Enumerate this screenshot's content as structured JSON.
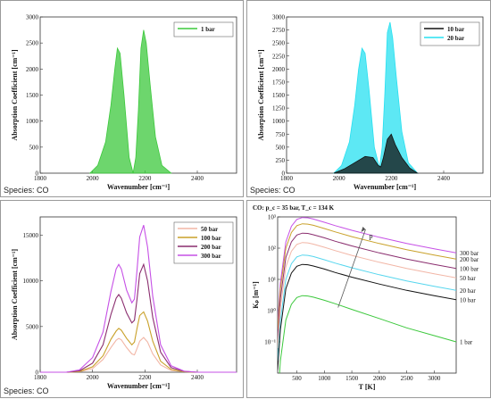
{
  "colors": {
    "green": "#3cc83c",
    "black": "#111111",
    "cyan": "#27e0f0",
    "c50": "#f2b6a6",
    "c100": "#c9a12a",
    "c200": "#8a2d6e",
    "c300": "#c650e6",
    "c1": "#3cc83c",
    "c10": "#111111",
    "c20": "#56d6ee"
  },
  "panels": [
    {
      "species_label": "Species: CO"
    },
    {
      "species_label": "Species: CO"
    },
    {
      "species_label": "Species: CO"
    },
    {
      "title": "CO: p_c = 35 bar, T_c = 134 K"
    }
  ],
  "chart_data": [
    {
      "type": "area",
      "xlabel": "Wavenumber [cm⁻¹]",
      "ylabel": "Absorption Coefficient [cm⁻¹]",
      "xlim": [
        1800,
        2550
      ],
      "ylim": [
        0,
        3000
      ],
      "xticks": [
        1800,
        2000,
        2200,
        2400
      ],
      "yticks": [
        0,
        500,
        1000,
        1500,
        2000,
        2500,
        3000
      ],
      "legend_position": "top-right",
      "series": [
        {
          "name": "1   bar",
          "color_key": "green",
          "x": [
            1990,
            2020,
            2050,
            2070,
            2085,
            2095,
            2105,
            2120,
            2140,
            2155,
            2165,
            2175,
            2185,
            2195,
            2205,
            2220,
            2240,
            2265,
            2300
          ],
          "y": [
            0,
            150,
            600,
            1300,
            2000,
            2400,
            2300,
            1500,
            300,
            0,
            300,
            1200,
            2400,
            2750,
            2500,
            1700,
            700,
            150,
            0
          ]
        }
      ]
    },
    {
      "type": "area",
      "xlabel": "Wavenumber [cm⁻¹]",
      "ylabel": "Absorption Coefficient [cm⁻¹]",
      "xlim": [
        1800,
        2550
      ],
      "ylim": [
        0,
        3000
      ],
      "xticks": [
        1800,
        2000,
        2200,
        2400
      ],
      "yticks": [
        0,
        250,
        500,
        750,
        1000,
        1250,
        1500,
        1750,
        2000,
        2250,
        2500,
        2750,
        3000
      ],
      "legend_position": "top-right",
      "series": [
        {
          "name": "20   bar",
          "color_key": "cyan",
          "x": [
            1980,
            2010,
            2040,
            2060,
            2075,
            2088,
            2100,
            2115,
            2135,
            2155,
            2165,
            2175,
            2185,
            2195,
            2205,
            2220,
            2240,
            2265,
            2300
          ],
          "y": [
            0,
            150,
            600,
            1300,
            2000,
            2400,
            2300,
            1600,
            500,
            100,
            500,
            1500,
            2700,
            2900,
            2600,
            1800,
            800,
            200,
            0
          ]
        },
        {
          "name": "10   bar",
          "color_key": "black",
          "x": [
            1980,
            2020,
            2060,
            2100,
            2130,
            2150,
            2160,
            2170,
            2185,
            2200,
            2215,
            2240,
            2270,
            2300
          ],
          "y": [
            0,
            80,
            200,
            320,
            300,
            150,
            120,
            300,
            650,
            750,
            550,
            300,
            100,
            0
          ]
        }
      ]
    },
    {
      "type": "line",
      "xlabel": "Wavenumber [cm⁻¹]",
      "ylabel": "Absorption Coefficient [cm⁻¹]",
      "xlim": [
        1800,
        2550
      ],
      "ylim": [
        0,
        17000
      ],
      "xticks": [
        1800,
        2000,
        2200,
        2400
      ],
      "yticks": [
        0,
        5000,
        10000,
        15000
      ],
      "legend_position": "top-right",
      "x": [
        1800,
        1900,
        1950,
        2000,
        2040,
        2070,
        2090,
        2100,
        2110,
        2130,
        2150,
        2160,
        2170,
        2180,
        2195,
        2210,
        2230,
        2260,
        2300,
        2350,
        2400,
        2500,
        2550
      ],
      "series": [
        {
          "name": "50   bar",
          "color_key": "c50",
          "y": [
            0,
            0,
            50,
            400,
            1400,
            2700,
            3500,
            3700,
            3550,
            2700,
            2000,
            1900,
            2600,
            3400,
            3800,
            3300,
            2000,
            800,
            200,
            50,
            0,
            0,
            0
          ]
        },
        {
          "name": "100   bar",
          "color_key": "c100",
          "y": [
            0,
            0,
            80,
            600,
            1800,
            3600,
            4500,
            4800,
            4600,
            3700,
            3000,
            3300,
            4800,
            6200,
            6600,
            5600,
            3400,
            1200,
            300,
            50,
            0,
            0,
            0
          ]
        },
        {
          "name": "200   bar",
          "color_key": "c200",
          "y": [
            0,
            0,
            150,
            1000,
            3000,
            6300,
            8100,
            8500,
            8100,
            6500,
            5400,
            5700,
            8000,
            10800,
            11800,
            10000,
            6000,
            2200,
            500,
            100,
            0,
            0,
            0
          ]
        },
        {
          "name": "300   bar",
          "color_key": "c300",
          "y": [
            0,
            0,
            250,
            1600,
            4400,
            8800,
            11300,
            11800,
            11300,
            9000,
            7600,
            8000,
            11200,
            14800,
            16100,
            13700,
            8300,
            3000,
            700,
            120,
            0,
            0,
            0
          ]
        }
      ]
    },
    {
      "type": "line",
      "xlabel": "T [K]",
      "ylabel": "Kₚ [m⁻¹]",
      "xlim": [
        150,
        3400
      ],
      "ylim_log10": [
        -2,
        3
      ],
      "xticks": [
        500,
        1000,
        1500,
        2000,
        2500,
        3000
      ],
      "yticks_labels": [
        "10⁻¹",
        "10⁰",
        "10¹",
        "10²",
        "10³"
      ],
      "yticks_exp": [
        -1,
        0,
        1,
        2,
        3
      ],
      "arrow_label": "p",
      "x": [
        150,
        200,
        300,
        400,
        500,
        600,
        700,
        800,
        1000,
        1200,
        1500,
        2000,
        2500,
        3000,
        3400
      ],
      "series": [
        {
          "name": "300 bar",
          "color_key": "c300",
          "log10y": [
            -0.4,
            0.9,
            2.2,
            2.7,
            2.92,
            2.98,
            2.97,
            2.93,
            2.83,
            2.72,
            2.57,
            2.35,
            2.15,
            1.98,
            1.85
          ]
        },
        {
          "name": "200 bar",
          "color_key": "c100",
          "log10y": [
            -0.6,
            0.7,
            2.0,
            2.5,
            2.72,
            2.78,
            2.77,
            2.73,
            2.63,
            2.52,
            2.37,
            2.15,
            1.95,
            1.78,
            1.65
          ]
        },
        {
          "name": "100 bar",
          "color_key": "c200",
          "log10y": [
            -0.9,
            0.4,
            1.7,
            2.2,
            2.42,
            2.48,
            2.47,
            2.43,
            2.33,
            2.22,
            2.07,
            1.85,
            1.65,
            1.48,
            1.35
          ]
        },
        {
          "name": "50 bar",
          "color_key": "c50",
          "log10y": [
            -1.2,
            0.1,
            1.4,
            1.9,
            2.12,
            2.18,
            2.17,
            2.13,
            2.03,
            1.92,
            1.77,
            1.55,
            1.35,
            1.18,
            1.05
          ]
        },
        {
          "name": "20 bar",
          "color_key": "c20",
          "log10y": [
            -1.6,
            -0.3,
            1.0,
            1.5,
            1.72,
            1.78,
            1.77,
            1.73,
            1.63,
            1.52,
            1.37,
            1.15,
            0.95,
            0.78,
            0.65
          ]
        },
        {
          "name": "10 bar",
          "color_key": "c10",
          "log10y": [
            -1.9,
            -0.6,
            0.7,
            1.2,
            1.42,
            1.48,
            1.47,
            1.43,
            1.33,
            1.22,
            1.07,
            0.85,
            0.65,
            0.48,
            0.35
          ]
        },
        {
          "name": "1 bar",
          "color_key": "c1",
          "log10y": [
            -2.9,
            -1.6,
            -0.3,
            0.2,
            0.42,
            0.48,
            0.47,
            0.43,
            0.33,
            0.22,
            0.04,
            -0.25,
            -0.55,
            -0.8,
            -1.0
          ]
        }
      ]
    }
  ]
}
